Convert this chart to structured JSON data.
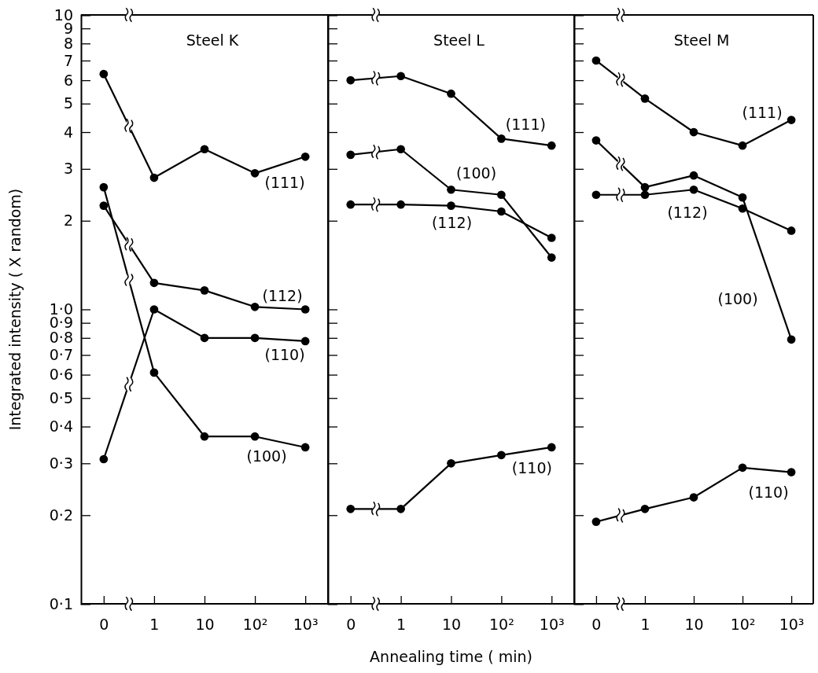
{
  "chart_data": [
    {
      "type": "line",
      "title": "Steel K",
      "ylabel": "Integrated intensity  ( X random)",
      "categories": [
        "0",
        "1",
        "10",
        "10²",
        "10³"
      ],
      "log": true,
      "ylim": [
        0.1,
        10
      ],
      "yticks": [
        {
          "value": 0.1,
          "label": "0·1"
        },
        {
          "value": 0.2,
          "label": "0·2"
        },
        {
          "value": 0.3,
          "label": "0·3"
        },
        {
          "value": 0.4,
          "label": "0·4"
        },
        {
          "value": 0.5,
          "label": "0·5"
        },
        {
          "value": 0.6,
          "label": "0·6"
        },
        {
          "value": 0.7,
          "label": "0·7"
        },
        {
          "value": 0.8,
          "label": "0·8"
        },
        {
          "value": 0.9,
          "label": "0·9"
        },
        {
          "value": 1,
          "label": "1·0"
        },
        2,
        3,
        4,
        5,
        6,
        7,
        8,
        9,
        10
      ],
      "marker": "circle",
      "line_style": "solid",
      "grid": false,
      "series": [
        {
          "name": "(111)",
          "color": "#000000",
          "values": [
            6.3,
            2.8,
            3.5,
            2.9,
            3.3
          ]
        },
        {
          "name": "(112)",
          "color": "#000000",
          "values": [
            2.25,
            1.23,
            1.16,
            1.02,
            1.0
          ]
        },
        {
          "name": "(110)",
          "color": "#000000",
          "values": [
            0.31,
            1.0,
            0.8,
            0.8,
            0.78
          ]
        },
        {
          "name": "(100)",
          "color": "#000000",
          "values": [
            2.6,
            0.61,
            0.37,
            0.37,
            0.34
          ]
        }
      ]
    },
    {
      "type": "line",
      "title": "Steel L",
      "xlabel": "Annealing time  ( min)",
      "categories": [
        "0",
        "1",
        "10",
        "10²",
        "10³"
      ],
      "log": true,
      "ylim": [
        0.1,
        10
      ],
      "yticks": [
        0.1,
        0.2,
        0.3,
        0.4,
        0.5,
        0.6,
        0.7,
        0.8,
        0.9,
        1,
        2,
        3,
        4,
        5,
        6,
        7,
        8,
        9,
        10
      ],
      "tick_labels": "x",
      "marker": "circle",
      "line_style": "solid",
      "grid": false,
      "series": [
        {
          "name": "(111)",
          "color": "#000000",
          "values": [
            6.0,
            6.2,
            5.4,
            3.8,
            3.6
          ]
        },
        {
          "name": "(100)",
          "color": "#000000",
          "values": [
            3.35,
            3.5,
            2.55,
            2.45,
            1.5
          ]
        },
        {
          "name": "(112)",
          "color": "#000000",
          "values": [
            2.27,
            2.27,
            2.25,
            2.15,
            1.75
          ]
        },
        {
          "name": "(110)",
          "color": "#000000",
          "values": [
            0.21,
            0.21,
            0.3,
            0.32,
            0.34
          ]
        }
      ]
    },
    {
      "type": "line",
      "title": "Steel M",
      "categories": [
        "0",
        "1",
        "10",
        "10²",
        "10³"
      ],
      "log": true,
      "ylim": [
        0.1,
        10
      ],
      "yticks": [
        0.1,
        0.2,
        0.3,
        0.4,
        0.5,
        0.6,
        0.7,
        0.8,
        0.9,
        1,
        2,
        3,
        4,
        5,
        6,
        7,
        8,
        9,
        10
      ],
      "tick_labels": "x",
      "marker": "circle",
      "line_style": "solid",
      "grid": false,
      "series": [
        {
          "name": "(111)",
          "color": "#000000",
          "values": [
            7.0,
            5.2,
            4.0,
            3.6,
            4.4
          ]
        },
        {
          "name": "(100)",
          "color": "#000000",
          "values": [
            3.75,
            2.6,
            2.85,
            2.4,
            0.79
          ]
        },
        {
          "name": "(112)",
          "color": "#000000",
          "values": [
            2.45,
            2.45,
            2.55,
            2.2,
            1.85
          ]
        },
        {
          "name": "(110)",
          "color": "#000000",
          "values": [
            0.19,
            0.21,
            0.23,
            0.29,
            0.28
          ]
        }
      ]
    }
  ]
}
